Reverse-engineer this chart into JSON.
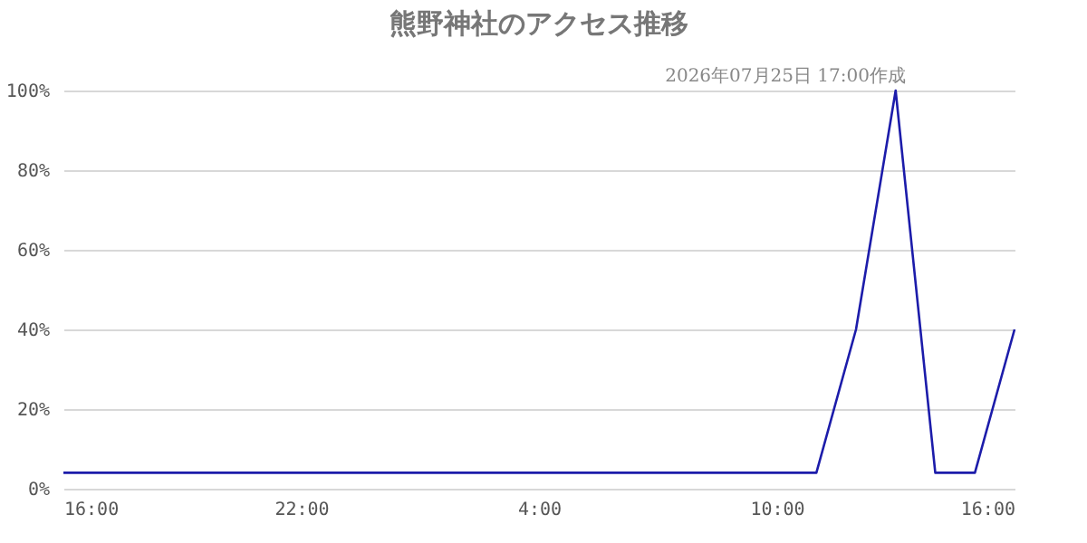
{
  "chart_data": {
    "type": "line",
    "title": "熊野神社のアクセス推移",
    "annotations": [
      "2026年07月25日 17:00作成"
    ],
    "x": [
      "2026-07-24T16:00",
      "2026-07-24T17:00",
      "2026-07-24T18:00",
      "2026-07-24T19:00",
      "2026-07-24T20:00",
      "2026-07-24T21:00",
      "2026-07-24T22:00",
      "2026-07-24T23:00",
      "2026-07-25T00:00",
      "2026-07-25T01:00",
      "2026-07-25T02:00",
      "2026-07-25T03:00",
      "2026-07-25T04:00",
      "2026-07-25T05:00",
      "2026-07-25T06:00",
      "2026-07-25T07:00",
      "2026-07-25T08:00",
      "2026-07-25T09:00",
      "2026-07-25T10:00",
      "2026-07-25T11:00",
      "2026-07-25T12:00",
      "2026-07-25T13:00",
      "2026-07-25T14:00",
      "2026-07-25T15:00",
      "2026-07-25T16:00"
    ],
    "series": [
      {
        "color": "#1c1caa",
        "values": [
          4,
          4,
          4,
          4,
          4,
          4,
          4,
          4,
          4,
          4,
          4,
          4,
          4,
          4,
          4,
          4,
          4,
          4,
          4,
          4,
          40,
          100,
          4,
          4,
          40
        ]
      }
    ],
    "xlim": [
      "2026-07-24T16:00",
      "2026-07-25T16:00"
    ],
    "xticks": [
      {
        "value": "2026-07-24T16:00",
        "label": "16:00"
      },
      {
        "value": "2026-07-24T22:00",
        "label": "22:00"
      },
      {
        "value": "2026-07-25T04:00",
        "label": "4:00"
      },
      {
        "value": "2026-07-25T10:00",
        "label": "10:00"
      },
      {
        "value": "2026-07-25T16:00",
        "label": "16:00"
      }
    ],
    "ylim": [
      0,
      100
    ],
    "yticks": [
      {
        "value": 0,
        "label": "0%"
      },
      {
        "value": 20,
        "label": "20%"
      },
      {
        "value": 40,
        "label": "40%"
      },
      {
        "value": 60,
        "label": "60%"
      },
      {
        "value": 80,
        "label": "80%"
      },
      {
        "value": 100,
        "label": "100%"
      }
    ],
    "grid": "y",
    "marker": "none",
    "line_style": "solid"
  }
}
